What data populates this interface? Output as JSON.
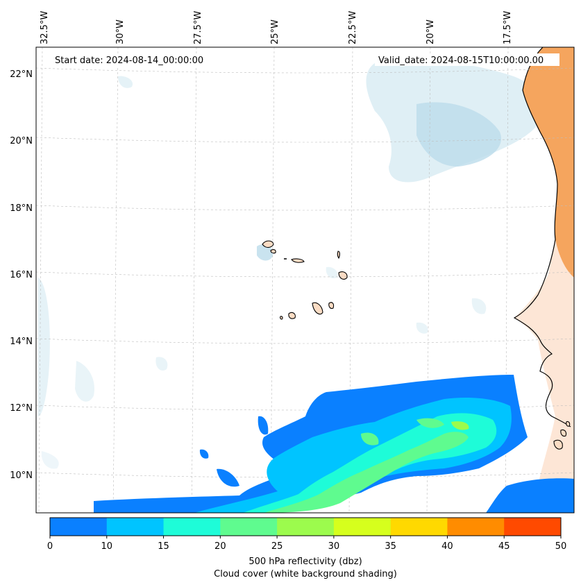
{
  "start_date": "Start date: 2024-08-14_00:00:00",
  "valid_date": "Valid_date: 2024-08-15T10:00:00.00",
  "top_lon_labels": [
    "32.5°W",
    "30°W",
    "27.5°W",
    "25°W",
    "22.5°W",
    "20°W",
    "17.5°W"
  ],
  "left_lat_labels": [
    "22°N",
    "20°N",
    "18°N",
    "16°N",
    "14°N",
    "12°N",
    "10°N"
  ],
  "colorbar": {
    "ticks": [
      "0",
      "10",
      "15",
      "20",
      "25",
      "30",
      "35",
      "40",
      "45",
      "50"
    ],
    "colors": [
      "#0a80ff",
      "#00c4ff",
      "#1efcd8",
      "#5ffb8f",
      "#9cfb4d",
      "#d6ff1d",
      "#ffd900",
      "#ff8c00",
      "#ff4a00"
    ],
    "label_line1": "500 hPa reflectivity (dbz)",
    "label_line2": "Cloud cover (white background shading)"
  },
  "colors": {
    "land": "#f5a55e",
    "cloud": "#cfe7f1"
  }
}
